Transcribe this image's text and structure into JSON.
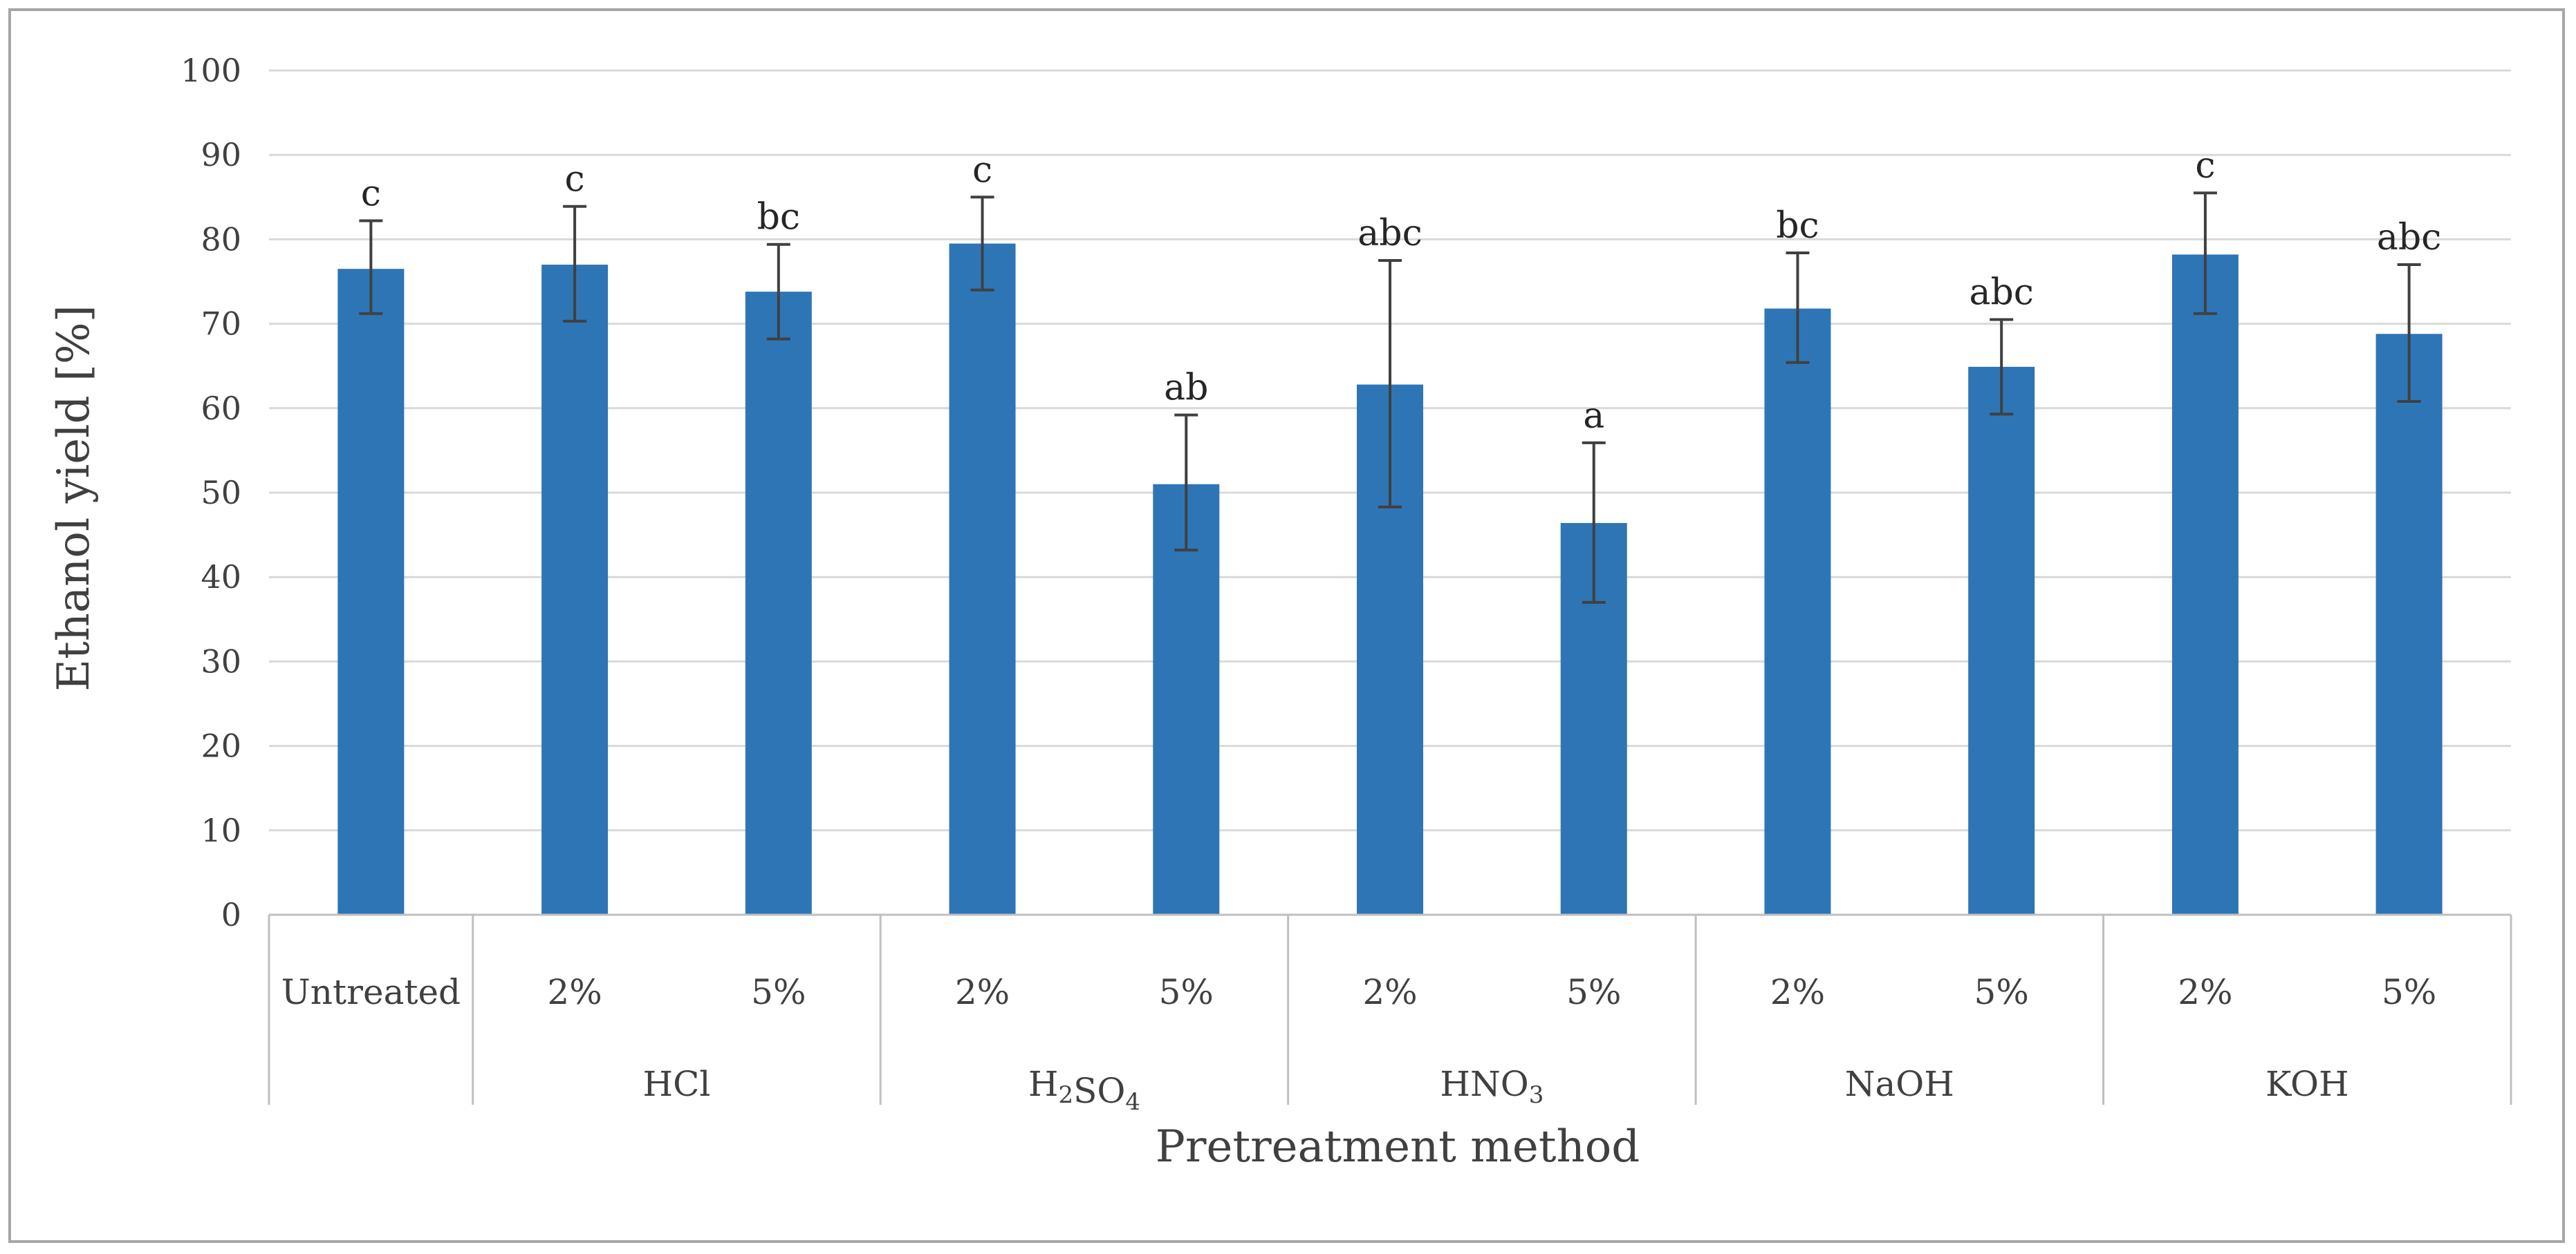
{
  "chart_data": {
    "type": "bar",
    "title": "",
    "xlabel": "Pretreatment method",
    "ylabel": "Ethanol yield [%]",
    "ylim": [
      0,
      100
    ],
    "yticks": [
      0,
      10,
      20,
      30,
      40,
      50,
      60,
      70,
      80,
      90,
      100
    ],
    "grid": true,
    "bar_color": "#2e75b6",
    "error_color": "#404040",
    "categories": [
      {
        "label": "Untreated",
        "group": "",
        "value": 76.5,
        "err_low": 71.2,
        "err_high": 82.2,
        "significance": "c"
      },
      {
        "label": "2%",
        "group": "HCl",
        "value": 77.0,
        "err_low": 70.3,
        "err_high": 83.9,
        "significance": "c"
      },
      {
        "label": "5%",
        "group": "HCl",
        "value": 73.8,
        "err_low": 68.2,
        "err_high": 79.4,
        "significance": "bc"
      },
      {
        "label": "2%",
        "group": "H2SO4",
        "value": 79.5,
        "err_low": 74.0,
        "err_high": 85.0,
        "significance": "c"
      },
      {
        "label": "5%",
        "group": "H2SO4",
        "value": 51.0,
        "err_low": 43.2,
        "err_high": 59.2,
        "significance": "ab"
      },
      {
        "label": "2%",
        "group": "HNO3",
        "value": 62.8,
        "err_low": 48.3,
        "err_high": 77.5,
        "significance": "abc"
      },
      {
        "label": "5%",
        "group": "HNO3",
        "value": 46.4,
        "err_low": 37.0,
        "err_high": 55.9,
        "significance": "a"
      },
      {
        "label": "2%",
        "group": "NaOH",
        "value": 71.8,
        "err_low": 65.4,
        "err_high": 78.4,
        "significance": "bc"
      },
      {
        "label": "5%",
        "group": "NaOH",
        "value": 64.9,
        "err_low": 59.3,
        "err_high": 70.5,
        "significance": "abc"
      },
      {
        "label": "2%",
        "group": "KOH",
        "value": 78.2,
        "err_low": 71.2,
        "err_high": 85.5,
        "significance": "c"
      },
      {
        "label": "5%",
        "group": "KOH",
        "value": 68.8,
        "err_low": 60.8,
        "err_high": 77.0,
        "significance": "abc"
      }
    ],
    "groups": [
      {
        "name": "",
        "main": "",
        "sub": "",
        "tail": "",
        "span": 1
      },
      {
        "name": "HCl",
        "main": "HCl",
        "sub": "",
        "tail": "",
        "span": 2
      },
      {
        "name": "H2SO4",
        "main": "H",
        "sub": "2",
        "tail": "SO",
        "sub2": "4",
        "span": 2
      },
      {
        "name": "HNO3",
        "main": "HNO",
        "sub": "3",
        "tail": "",
        "span": 2
      },
      {
        "name": "NaOH",
        "main": "NaOH",
        "sub": "",
        "tail": "",
        "span": 2
      },
      {
        "name": "KOH",
        "main": "KOH",
        "sub": "",
        "tail": "",
        "span": 2
      }
    ]
  }
}
